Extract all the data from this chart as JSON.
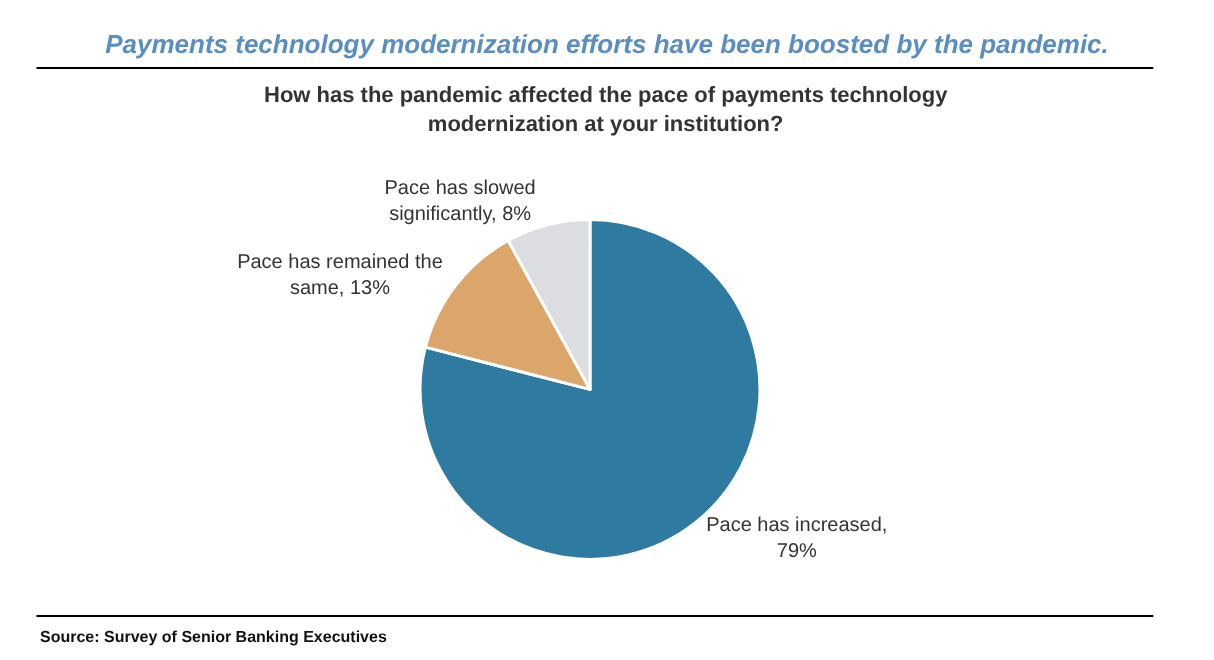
{
  "chart_data": {
    "type": "pie",
    "title": "Payments technology modernization efforts have been boosted by the pandemic.",
    "subtitle": "How has the pandemic affected the pace of payments technology modernization at your institution?",
    "categories": [
      "Pace has increased, 79%",
      "Pace has remained the same, 13%",
      "Pace has slowed significantly, 8%"
    ],
    "values": [
      79,
      13,
      8
    ],
    "colors": [
      "#2e7aa0",
      "#dca56a",
      "#dcdde0"
    ],
    "legend": false,
    "annotations": [
      "Source: Survey of Senior Banking Executives"
    ]
  }
}
